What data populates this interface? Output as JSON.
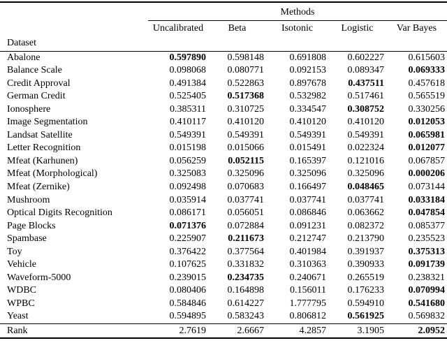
{
  "table": {
    "group_header": "Methods",
    "dataset_header": "Dataset",
    "columns": [
      "Uncalibrated",
      "Beta",
      "Isotonic",
      "Logistic",
      "Var Bayes"
    ],
    "rows": [
      {
        "dataset": "Abalone",
        "values": [
          "0.597890",
          "0.598148",
          "0.691808",
          "0.602227",
          "0.615603"
        ],
        "bold": 0
      },
      {
        "dataset": "Balance Scale",
        "values": [
          "0.098068",
          "0.080771",
          "0.092153",
          "0.089347",
          "0.069333"
        ],
        "bold": 4
      },
      {
        "dataset": "Credit Approval",
        "values": [
          "0.491384",
          "0.522863",
          "0.897678",
          "0.437511",
          "0.457618"
        ],
        "bold": 3
      },
      {
        "dataset": "German Credit",
        "values": [
          "0.525405",
          "0.517368",
          "0.532982",
          "0.517461",
          "0.565519"
        ],
        "bold": 1
      },
      {
        "dataset": "Ionosphere",
        "values": [
          "0.385311",
          "0.310725",
          "0.334547",
          "0.308752",
          "0.330256"
        ],
        "bold": 3
      },
      {
        "dataset": "Image Segmentation",
        "values": [
          "0.410117",
          "0.410120",
          "0.410120",
          "0.410120",
          "0.012053"
        ],
        "bold": 4
      },
      {
        "dataset": "Landsat Satellite",
        "values": [
          "0.549391",
          "0.549391",
          "0.549391",
          "0.549391",
          "0.065981"
        ],
        "bold": 4
      },
      {
        "dataset": "Letter Recognition",
        "values": [
          "0.015198",
          "0.015066",
          "0.015491",
          "0.022324",
          "0.012077"
        ],
        "bold": 4
      },
      {
        "dataset": "Mfeat (Karhunen)",
        "values": [
          "0.056259",
          "0.052115",
          "0.165397",
          "0.121016",
          "0.067857"
        ],
        "bold": 1
      },
      {
        "dataset": "Mfeat (Morphological)",
        "values": [
          "0.325083",
          "0.325096",
          "0.325096",
          "0.325096",
          "0.000206"
        ],
        "bold": 4
      },
      {
        "dataset": "Mfeat (Zernike)",
        "values": [
          "0.092498",
          "0.070683",
          "0.166497",
          "0.048465",
          "0.073144"
        ],
        "bold": 3
      },
      {
        "dataset": "Mushroom",
        "values": [
          "0.035914",
          "0.037741",
          "0.037741",
          "0.037741",
          "0.033184"
        ],
        "bold": 4
      },
      {
        "dataset": "Optical Digits Recognition",
        "values": [
          "0.086171",
          "0.056051",
          "0.086846",
          "0.063662",
          "0.047854"
        ],
        "bold": 4
      },
      {
        "dataset": "Page Blocks",
        "values": [
          "0.071376",
          "0.072884",
          "0.091231",
          "0.082372",
          "0.085377"
        ],
        "bold": 0
      },
      {
        "dataset": "Spambase",
        "values": [
          "0.225907",
          "0.211673",
          "0.212747",
          "0.213790",
          "0.235523"
        ],
        "bold": 1
      },
      {
        "dataset": "Toy",
        "values": [
          "0.376422",
          "0.377564",
          "0.401984",
          "0.391937",
          "0.375313"
        ],
        "bold": 4
      },
      {
        "dataset": "Vehicle",
        "values": [
          "0.107625",
          "0.331832",
          "0.310363",
          "0.390933",
          "0.091739"
        ],
        "bold": 4
      },
      {
        "dataset": "Waveform-5000",
        "values": [
          "0.239015",
          "0.234735",
          "0.240671",
          "0.265519",
          "0.238321"
        ],
        "bold": 1
      },
      {
        "dataset": "WDBC",
        "values": [
          "0.080406",
          "0.164898",
          "0.156011",
          "0.176233",
          "0.070994"
        ],
        "bold": 4
      },
      {
        "dataset": "WPBC",
        "values": [
          "0.584846",
          "0.614227",
          "1.777795",
          "0.594910",
          "0.541680"
        ],
        "bold": 4
      },
      {
        "dataset": "Yeast",
        "values": [
          "0.594895",
          "0.583243",
          "0.806812",
          "0.561925",
          "0.569832"
        ],
        "bold": 3
      }
    ],
    "footer": {
      "label": "Rank",
      "values": [
        "2.7619",
        "2.6667",
        "4.2857",
        "3.1905",
        "2.0952"
      ],
      "bold": 4
    }
  }
}
